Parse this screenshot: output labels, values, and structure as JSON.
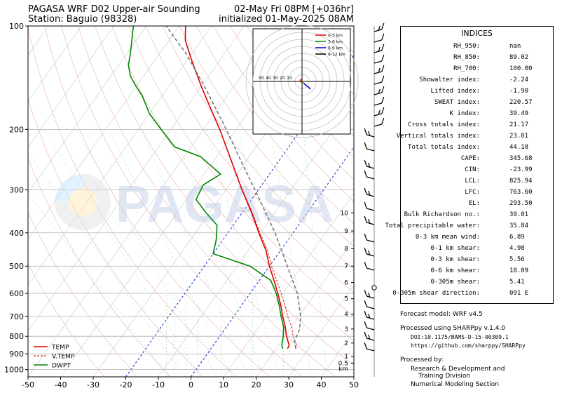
{
  "header": {
    "title_left_1": "PAGASA WRF D02 Upper-air Sounding",
    "title_left_2": "Station: Baguio (98328)",
    "title_right_1": "02-May Fri 08PM [+036hr]",
    "title_right_2": "initialized 01-May-2025 08AM"
  },
  "watermark": "PAGASA",
  "chart_data": {
    "type": "line",
    "subtype": "skew-t log-p",
    "x_axis": {
      "label": "",
      "ticks": [
        -50,
        -40,
        -30,
        -20,
        -10,
        0,
        10,
        20,
        30,
        40,
        50
      ],
      "range": [
        -50,
        50
      ]
    },
    "y_axis": {
      "label": "",
      "scale": "log",
      "ticks": [
        100,
        200,
        300,
        400,
        500,
        600,
        700,
        800,
        900,
        1000
      ],
      "range": [
        1050,
        100
      ]
    },
    "height_scale": {
      "unit": "km",
      "ticks": [
        {
          "p": 915,
          "label": "1"
        },
        {
          "p": 837,
          "label": "2"
        },
        {
          "p": 762,
          "label": "3"
        },
        {
          "p": 690,
          "label": "4"
        },
        {
          "p": 622,
          "label": "5"
        },
        {
          "p": 558,
          "label": "6"
        },
        {
          "p": 500,
          "label": "7"
        },
        {
          "p": 445,
          "label": "8"
        },
        {
          "p": 395,
          "label": "9"
        },
        {
          "p": 350,
          "label": "10"
        },
        {
          "p": 957,
          "label": "0.5"
        }
      ]
    },
    "legend": {
      "placement": "lower-left",
      "entries": [
        {
          "name": "TEMP",
          "color": "#dd0000",
          "style": "solid"
        },
        {
          "name": "V.TEMP",
          "color": "#dd0000",
          "style": "dashed"
        },
        {
          "name": "DWPT",
          "color": "#008800",
          "style": "solid"
        }
      ]
    },
    "series": [
      {
        "name": "TEMP",
        "color": "#dd0000",
        "points": [
          [
            869,
            23.5
          ],
          [
            850,
            23.3
          ],
          [
            800,
            20.5
          ],
          [
            750,
            18.0
          ],
          [
            700,
            15.0
          ],
          [
            650,
            12.0
          ],
          [
            600,
            8.5
          ],
          [
            550,
            4.5
          ],
          [
            500,
            0.0
          ],
          [
            450,
            -4.5
          ],
          [
            400,
            -10.5
          ],
          [
            350,
            -17.0
          ],
          [
            300,
            -25.0
          ],
          [
            250,
            -34.0
          ],
          [
            200,
            -45.0
          ],
          [
            175,
            -52.0
          ],
          [
            150,
            -60.0
          ],
          [
            125,
            -69.0
          ],
          [
            110,
            -75.0
          ],
          [
            100,
            -78.0
          ]
        ]
      },
      {
        "name": "V.TEMP",
        "color": "#dd0000",
        "points": [
          [
            869,
            26.0
          ],
          [
            850,
            25.6
          ],
          [
            800,
            22.5
          ],
          [
            750,
            20.0
          ],
          [
            700,
            16.5
          ],
          [
            650,
            13.3
          ],
          [
            600,
            9.5
          ],
          [
            550,
            5.3
          ],
          [
            500,
            0.6
          ],
          [
            450,
            -4.0
          ],
          [
            400,
            -10.2
          ],
          [
            350,
            -16.8
          ],
          [
            300,
            -24.9
          ],
          [
            250,
            -34.0
          ],
          [
            200,
            -45.0
          ]
        ]
      },
      {
        "name": "DWPT",
        "color": "#008800",
        "points": [
          [
            869,
            22.0
          ],
          [
            850,
            21.0
          ],
          [
            800,
            19.5
          ],
          [
            750,
            17.5
          ],
          [
            700,
            14.5
          ],
          [
            650,
            11.5
          ],
          [
            600,
            8.0
          ],
          [
            550,
            3.5
          ],
          [
            500,
            -6.0
          ],
          [
            460,
            -20.0
          ],
          [
            420,
            -22.0
          ],
          [
            380,
            -25.0
          ],
          [
            350,
            -31.0
          ],
          [
            320,
            -37.0
          ],
          [
            290,
            -38.0
          ],
          [
            270,
            -35.0
          ],
          [
            240,
            -45.0
          ],
          [
            225,
            -55.0
          ],
          [
            200,
            -63.0
          ],
          [
            180,
            -70.0
          ],
          [
            160,
            -76.0
          ],
          [
            150,
            -80.0
          ],
          [
            140,
            -84.0
          ],
          [
            130,
            -87.0
          ],
          [
            120,
            -89.0
          ],
          [
            100,
            -94.0
          ]
        ]
      },
      {
        "name": "Parcel",
        "color": "#777777",
        "points": [
          [
            869,
            26.0
          ],
          [
            826,
            24.0
          ],
          [
            764,
            23.0
          ],
          [
            700,
            20.5
          ],
          [
            600,
            14.5
          ],
          [
            500,
            5.5
          ],
          [
            400,
            -5.5
          ],
          [
            300,
            -21.0
          ],
          [
            250,
            -31.0
          ],
          [
            200,
            -43.0
          ],
          [
            150,
            -59.0
          ],
          [
            120,
            -72.0
          ],
          [
            100,
            -84.0
          ]
        ]
      }
    ],
    "hodograph": {
      "legend": [
        {
          "name": "0-3 km",
          "color": "#dd0000"
        },
        {
          "name": "3-6 km",
          "color": "#008800"
        },
        {
          "name": "6-9 km",
          "color": "#0000cc"
        },
        {
          "name": "9-12 km",
          "color": "#000000"
        }
      ],
      "ring_labels": [
        "50",
        "40",
        "30",
        "20",
        "10"
      ],
      "curve": [
        [
          -1,
          3
        ],
        [
          -3,
          1
        ],
        [
          -1,
          -1
        ],
        [
          1,
          -2
        ],
        [
          3,
          -3
        ],
        [
          4,
          -4
        ],
        [
          6,
          -6
        ],
        [
          8,
          -7
        ],
        [
          10,
          -9
        ],
        [
          11,
          -10
        ],
        [
          12,
          -11
        ]
      ]
    }
  },
  "indices": {
    "title": "INDICES",
    "rows": [
      {
        "label": "RH_950:",
        "value": "nan"
      },
      {
        "label": "RH_850:",
        "value": "89.02"
      },
      {
        "label": "RH_700:",
        "value": "100.00"
      },
      {
        "label": "Showalter index:",
        "value": "-2.24"
      },
      {
        "label": "Lifted index:",
        "value": "-1.90"
      },
      {
        "label": "SWEAT index:",
        "value": "220.57"
      },
      {
        "label": "K index:",
        "value": "39.49"
      },
      {
        "label": "Cross totals index:",
        "value": "21.17"
      },
      {
        "label": "Vertical totals index:",
        "value": "23.01"
      },
      {
        "label": "Total totals index:",
        "value": "44.18"
      },
      {
        "label": "CAPE:",
        "value": "345.68"
      },
      {
        "label": "CIN:",
        "value": "-23.99"
      },
      {
        "label": "LCL:",
        "value": "825.94"
      },
      {
        "label": "LFC:",
        "value": "763.60"
      },
      {
        "label": "EL:",
        "value": "293.50"
      },
      {
        "label": "Bulk Richardson no.:",
        "value": "39.01"
      },
      {
        "label": "Total precipitable water:",
        "value": "35.84"
      },
      {
        "label": "0-3 km mean wind:",
        "value": "6.89"
      },
      {
        "label": "0-1 km shear:",
        "value": "4.98"
      },
      {
        "label": "0-3 km shear:",
        "value": "5.56"
      },
      {
        "label": "0-6 km shear:",
        "value": "18.09"
      },
      {
        "label": "0-305m shear:",
        "value": "5.41"
      },
      {
        "label": "0-305m shear direction:",
        "value": "091 E"
      }
    ]
  },
  "footer": {
    "model": "Forecast model: WRF v4.5",
    "processed": "Processed using SHARPpy v.1.4.0",
    "doi": "DOI:10.1175/BAMS-D-15-00309.1",
    "url": "https://github.com/sharppy/SHARPpy",
    "by": "Processed by:",
    "org1": "Research & Development and",
    "org2": "Training Division",
    "org3": "Numerical Modeling Section"
  }
}
